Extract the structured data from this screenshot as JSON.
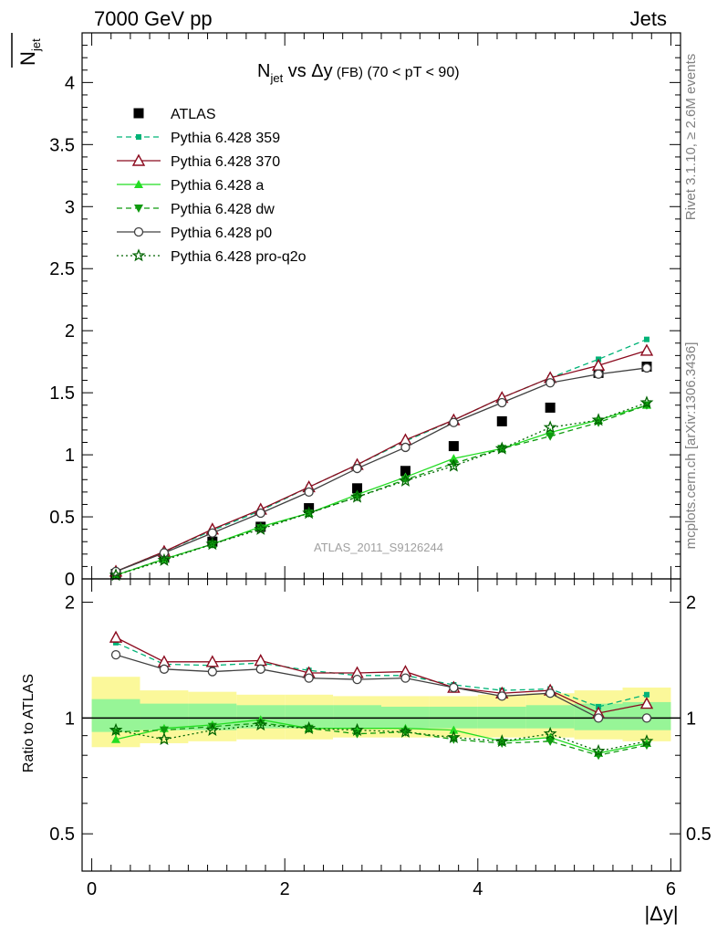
{
  "header": {
    "left": "7000 GeV pp",
    "right": "Jets"
  },
  "title": {
    "main": "N",
    "sub": "jet",
    "vs": " vs Δy",
    "small": " (FB)",
    "range": " (70 < pT <  90)"
  },
  "ylabel_top": {
    "main": "N",
    "sub": "jet"
  },
  "ylabel_bottom": "Ratio to ATLAS",
  "xlabel": "|Δy|",
  "side_text": {
    "rivet": "Rivet 3.1.10, ≥ 2.6M events",
    "mcplots": "mcplots.cern.ch [arXiv:1306.3436]"
  },
  "watermark": "ATLAS_2011_S9126244",
  "tick_labels": {
    "x": [
      "0",
      "2",
      "4",
      "6"
    ],
    "y_top": [
      "0",
      "0.5",
      "1",
      "1.5",
      "2",
      "2.5",
      "3",
      "3.5",
      "4"
    ],
    "y_bottom_left": [
      "0.5",
      "1",
      "2"
    ],
    "y_bottom_right": [
      "0.5",
      "1",
      "2"
    ]
  },
  "legend": [
    {
      "label": "ATLAS",
      "color": "#000000",
      "marker": "square-filled",
      "line": "none"
    },
    {
      "label": "Pythia 6.428 359",
      "color": "#00b377",
      "marker": "square-filled-small",
      "line": "dashed"
    },
    {
      "label": "Pythia 6.428 370",
      "color": "#8b0a1e",
      "marker": "triangle-open",
      "line": "solid"
    },
    {
      "label": "Pythia 6.428 a",
      "color": "#22dd22",
      "marker": "triangle-filled",
      "line": "solid"
    },
    {
      "label": "Pythia 6.428 dw",
      "color": "#0f9a0f",
      "marker": "triangle-down-filled",
      "line": "dashed"
    },
    {
      "label": "Pythia 6.428 p0",
      "color": "#404040",
      "marker": "circle-open",
      "line": "solid"
    },
    {
      "label": "Pythia 6.428 pro-q2o",
      "color": "#006400",
      "marker": "star",
      "line": "dotted"
    }
  ],
  "chart_data": [
    {
      "type": "line",
      "panel": "main",
      "x": [
        0.25,
        0.75,
        1.25,
        1.75,
        2.25,
        2.75,
        3.25,
        3.75,
        4.25,
        4.75,
        5.25,
        5.75
      ],
      "xlim": [
        -0.1,
        6.1
      ],
      "ylim": [
        0,
        4.4
      ],
      "series": [
        {
          "name": "ATLAS",
          "values": [
            0.04,
            0.17,
            0.3,
            0.42,
            0.57,
            0.73,
            0.87,
            1.07,
            1.27,
            1.38,
            1.66,
            1.71
          ]
        },
        {
          "name": "Pythia 6.428 359",
          "values": [
            0.06,
            0.22,
            0.39,
            0.55,
            0.74,
            0.92,
            1.11,
            1.28,
            1.46,
            1.62,
            1.77,
            1.93
          ]
        },
        {
          "name": "Pythia 6.428 370",
          "values": [
            0.06,
            0.22,
            0.4,
            0.56,
            0.74,
            0.92,
            1.12,
            1.28,
            1.46,
            1.62,
            1.72,
            1.84
          ]
        },
        {
          "name": "Pythia 6.428 a",
          "values": [
            0.03,
            0.16,
            0.28,
            0.42,
            0.53,
            0.68,
            0.82,
            0.97,
            1.05,
            1.18,
            1.28,
            1.4
          ]
        },
        {
          "name": "Pythia 6.428 dw",
          "values": [
            0.03,
            0.16,
            0.28,
            0.41,
            0.53,
            0.66,
            0.8,
            0.93,
            1.05,
            1.15,
            1.26,
            1.4
          ]
        },
        {
          "name": "Pythia 6.428 p0",
          "values": [
            0.06,
            0.21,
            0.37,
            0.53,
            0.7,
            0.89,
            1.06,
            1.26,
            1.42,
            1.58,
            1.65,
            1.7
          ]
        },
        {
          "name": "Pythia 6.428 pro-q2o",
          "values": [
            0.03,
            0.15,
            0.28,
            0.4,
            0.53,
            0.66,
            0.79,
            0.91,
            1.05,
            1.22,
            1.28,
            1.42
          ]
        }
      ]
    },
    {
      "type": "line",
      "panel": "ratio",
      "ylabel": "Ratio to ATLAS",
      "x": [
        0.25,
        0.75,
        1.25,
        1.75,
        2.25,
        2.75,
        3.25,
        3.75,
        4.25,
        4.75,
        5.25,
        5.75
      ],
      "xlim": [
        -0.1,
        6.1
      ],
      "ylim": [
        0.4,
        2.3
      ],
      "yscale": "log",
      "band_edges": [
        0,
        0.5,
        1.0,
        1.5,
        2.0,
        2.5,
        3.0,
        3.5,
        4.0,
        4.5,
        5.0,
        5.5,
        6.0
      ],
      "band_outer": [
        [
          0.84,
          1.28
        ],
        [
          0.86,
          1.18
        ],
        [
          0.87,
          1.17
        ],
        [
          0.88,
          1.15
        ],
        [
          0.88,
          1.15
        ],
        [
          0.89,
          1.14
        ],
        [
          0.89,
          1.14
        ],
        [
          0.89,
          1.14
        ],
        [
          0.89,
          1.15
        ],
        [
          0.89,
          1.16
        ],
        [
          0.88,
          1.18
        ],
        [
          0.87,
          1.2
        ]
      ],
      "band_inner": [
        [
          0.92,
          1.12
        ],
        [
          0.93,
          1.09
        ],
        [
          0.93,
          1.09
        ],
        [
          0.94,
          1.08
        ],
        [
          0.94,
          1.08
        ],
        [
          0.94,
          1.08
        ],
        [
          0.94,
          1.07
        ],
        [
          0.94,
          1.07
        ],
        [
          0.94,
          1.07
        ],
        [
          0.94,
          1.08
        ],
        [
          0.93,
          1.09
        ],
        [
          0.93,
          1.1
        ]
      ],
      "series": [
        {
          "name": "Pythia 6.428 359",
          "values": [
            1.57,
            1.38,
            1.37,
            1.39,
            1.33,
            1.29,
            1.29,
            1.22,
            1.18,
            1.19,
            1.07,
            1.15
          ]
        },
        {
          "name": "Pythia 6.428 370",
          "values": [
            1.62,
            1.4,
            1.4,
            1.41,
            1.31,
            1.31,
            1.32,
            1.2,
            1.16,
            1.18,
            1.03,
            1.09
          ]
        },
        {
          "name": "Pythia 6.428 a",
          "values": [
            0.88,
            0.94,
            0.96,
            0.99,
            0.94,
            0.94,
            0.94,
            0.93,
            0.87,
            0.89,
            0.81,
            0.86
          ]
        },
        {
          "name": "Pythia 6.428 dw",
          "values": [
            0.92,
            0.93,
            0.95,
            0.97,
            0.94,
            0.91,
            0.92,
            0.88,
            0.86,
            0.87,
            0.8,
            0.85
          ]
        },
        {
          "name": "Pythia 6.428 p0",
          "values": [
            1.46,
            1.34,
            1.32,
            1.34,
            1.27,
            1.26,
            1.27,
            1.2,
            1.14,
            1.16,
            1.0,
            1.0
          ]
        },
        {
          "name": "Pythia 6.428 pro-q2o",
          "values": [
            0.93,
            0.88,
            0.93,
            0.96,
            0.94,
            0.93,
            0.92,
            0.89,
            0.87,
            0.91,
            0.82,
            0.87
          ]
        }
      ]
    }
  ]
}
